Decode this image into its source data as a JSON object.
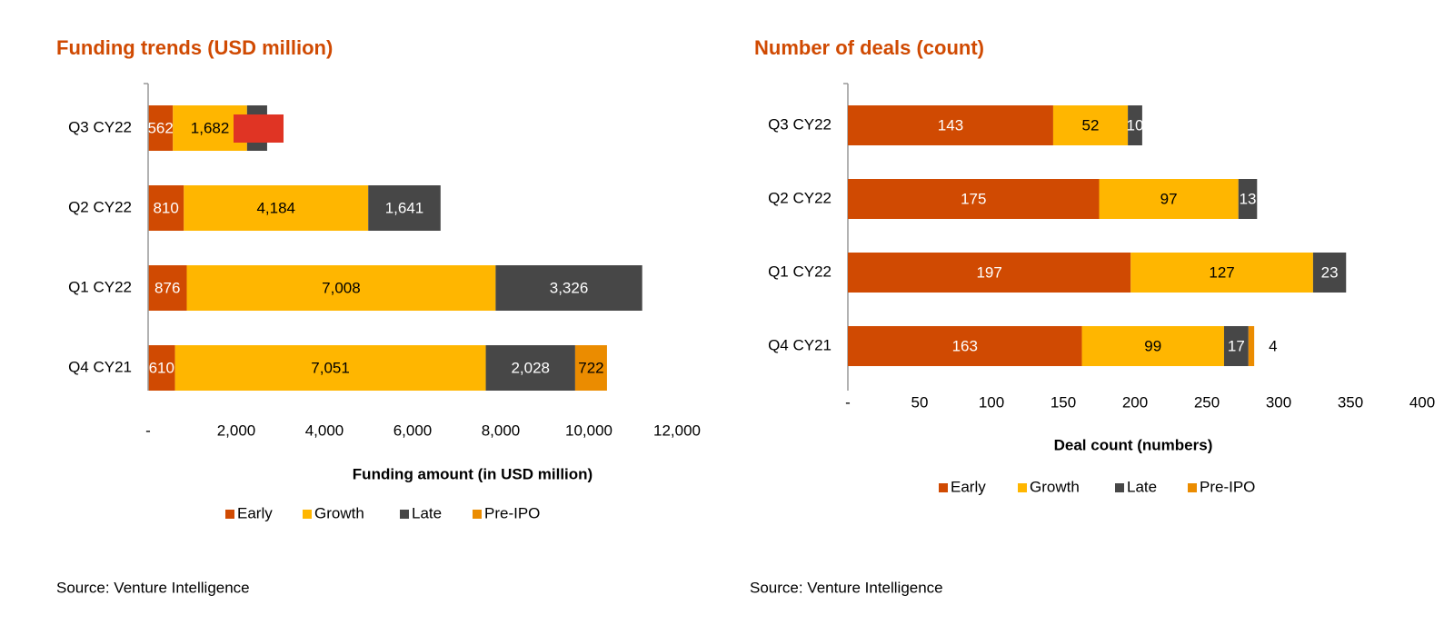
{
  "chart_data": [
    {
      "type": "bar",
      "orientation": "horizontal",
      "stacked": true,
      "title": "Funding trends (USD million)",
      "x_label": "Funding amount (in USD million)",
      "source": "Source: Venture Intelligence",
      "categories": [
        "Q3 CY22",
        "Q2 CY22",
        "Q1 CY22",
        "Q4 CY21"
      ],
      "series": [
        {
          "name": "Early",
          "color": "#d04a02",
          "values": [
            562,
            810,
            876,
            610
          ],
          "value_labels": [
            "562",
            "810",
            "876",
            "610"
          ]
        },
        {
          "name": "Growth",
          "color": "#ffb600",
          "values": [
            1682,
            4184,
            7008,
            7051
          ],
          "value_labels": [
            "1,682",
            "4,184",
            "7,008",
            "7,051"
          ]
        },
        {
          "name": "Late",
          "color": "#474747",
          "values": [
            456,
            1641,
            3326,
            2028
          ],
          "value_labels": [
            null,
            "1,641",
            "3,326",
            "2,028"
          ]
        },
        {
          "name": "Pre-IPO",
          "color": "#eb8c00",
          "values": [
            null,
            null,
            null,
            722
          ],
          "value_labels": [
            null,
            null,
            null,
            "722"
          ]
        }
      ],
      "xlim": [
        0,
        12000
      ],
      "xticks": [
        {
          "value": 0,
          "label": "-"
        },
        {
          "value": 2000,
          "label": "2,000"
        },
        {
          "value": 4000,
          "label": "4,000"
        },
        {
          "value": 6000,
          "label": "6,000"
        },
        {
          "value": 8000,
          "label": "8,000"
        },
        {
          "value": 10000,
          "label": "10,000"
        },
        {
          "value": 12000,
          "label": "12,000"
        }
      ],
      "grid": false,
      "legend": "bottom"
    },
    {
      "type": "bar",
      "orientation": "horizontal",
      "stacked": true,
      "title": "Number of deals (count)",
      "x_label": "Deal count (numbers)",
      "source": "Source: Venture Intelligence",
      "categories": [
        "Q3 CY22",
        "Q2 CY22",
        "Q1 CY22",
        "Q4 CY21"
      ],
      "series": [
        {
          "name": "Early",
          "color": "#d04a02",
          "values": [
            143,
            175,
            197,
            163
          ]
        },
        {
          "name": "Growth",
          "color": "#ffb600",
          "values": [
            52,
            97,
            127,
            99
          ]
        },
        {
          "name": "Late",
          "color": "#474747",
          "values": [
            10,
            13,
            23,
            17
          ]
        },
        {
          "name": "Pre-IPO",
          "color": "#eb8c00",
          "values": [
            null,
            null,
            null,
            4
          ]
        }
      ],
      "xlim": [
        0,
        400
      ],
      "xticks": [
        {
          "value": 0,
          "label": "-"
        },
        50,
        100,
        150,
        200,
        250,
        300,
        350,
        400
      ],
      "grid": false,
      "legend": "bottom"
    }
  ]
}
